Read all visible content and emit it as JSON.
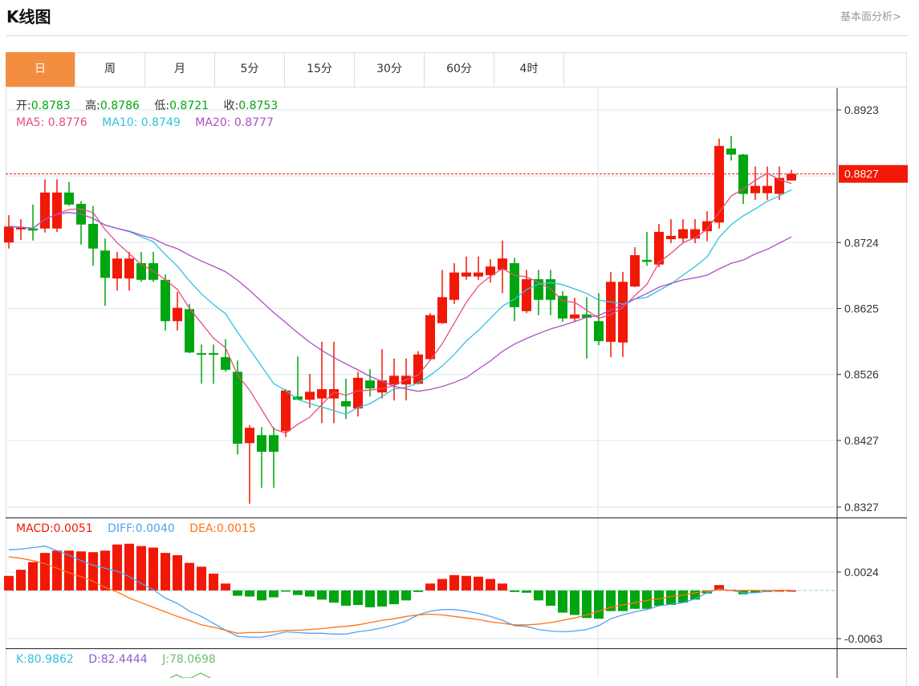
{
  "header": {
    "title": "K线图",
    "link": "基本面分析>"
  },
  "tabs": [
    {
      "label": "日",
      "active": true
    },
    {
      "label": "周"
    },
    {
      "label": "月"
    },
    {
      "label": "5分"
    },
    {
      "label": "15分"
    },
    {
      "label": "30分"
    },
    {
      "label": "60分"
    },
    {
      "label": "4时"
    }
  ],
  "ohlc_legend": {
    "open_label": "开:",
    "open": "0.8783",
    "high_label": "高:",
    "high": "0.8786",
    "low_label": "低:",
    "low": "0.8721",
    "close_label": "收:",
    "close": "0.8753"
  },
  "ma_legend": {
    "ma5": "MA5: 0.8776",
    "ma10": "MA10: 0.8749",
    "ma20": "MA20: 0.8777"
  },
  "macd_legend": {
    "macd": "MACD:0.0051",
    "diff": "DIFF:0.0040",
    "dea": "DEA:0.0015"
  },
  "kdj_legend": {
    "k": "K:80.9862",
    "d": "D:82.4444",
    "j": "J:78.0698"
  },
  "colors": {
    "up": "#f21806",
    "down": "#00a60f",
    "ma5": "#ea4c7f",
    "ma10": "#2ec4dc",
    "ma20": "#ab4fc4",
    "diff": "#4da3f5",
    "dea": "#ff7214",
    "accent": "#f38d3f"
  },
  "chart_data": [
    {
      "type": "candlestick",
      "title": "K线图",
      "ylim": [
        0.8327,
        0.8923
      ],
      "yticks": [
        "0.8923",
        "0.8724",
        "0.8625",
        "0.8526",
        "0.8427",
        "0.8327"
      ],
      "current_price": "0.8827",
      "ohlc": [
        [
          0.8724,
          0.8765,
          0.8715,
          0.8748
        ],
        [
          0.8744,
          0.8759,
          0.8728,
          0.8746
        ],
        [
          0.8745,
          0.8781,
          0.8727,
          0.8742
        ],
        [
          0.8745,
          0.8819,
          0.8739,
          0.8799
        ],
        [
          0.8745,
          0.8819,
          0.874,
          0.8799
        ],
        [
          0.8799,
          0.8815,
          0.8779,
          0.8781
        ],
        [
          0.8782,
          0.8786,
          0.8721,
          0.8751
        ],
        [
          0.8752,
          0.8779,
          0.8689,
          0.8715
        ],
        [
          0.8712,
          0.873,
          0.8629,
          0.8671
        ],
        [
          0.867,
          0.871,
          0.8652,
          0.87
        ],
        [
          0.867,
          0.871,
          0.8652,
          0.87
        ],
        [
          0.8693,
          0.871,
          0.8665,
          0.8668
        ],
        [
          0.8693,
          0.871,
          0.8665,
          0.8668
        ],
        [
          0.8668,
          0.8676,
          0.8592,
          0.8606
        ],
        [
          0.8606,
          0.865,
          0.8592,
          0.8626
        ],
        [
          0.8624,
          0.8632,
          0.8558,
          0.8559
        ],
        [
          0.8558,
          0.8571,
          0.8512,
          0.8556
        ],
        [
          0.8558,
          0.8571,
          0.8512,
          0.8556
        ],
        [
          0.8552,
          0.8579,
          0.853,
          0.8533
        ],
        [
          0.853,
          0.8547,
          0.8406,
          0.8422
        ],
        [
          0.8423,
          0.845,
          0.8332,
          0.8446
        ],
        [
          0.8435,
          0.8447,
          0.8356,
          0.841
        ],
        [
          0.8435,
          0.8447,
          0.8356,
          0.841
        ],
        [
          0.8441,
          0.8504,
          0.8432,
          0.8502
        ],
        [
          0.8493,
          0.8553,
          0.8488,
          0.8488
        ],
        [
          0.8488,
          0.8527,
          0.8476,
          0.85
        ],
        [
          0.849,
          0.8575,
          0.8453,
          0.8504
        ],
        [
          0.849,
          0.8575,
          0.8453,
          0.8504
        ],
        [
          0.8486,
          0.852,
          0.8459,
          0.8478
        ],
        [
          0.8475,
          0.853,
          0.8463,
          0.8521
        ],
        [
          0.8517,
          0.8534,
          0.8493,
          0.8505
        ],
        [
          0.8499,
          0.8564,
          0.849,
          0.8517
        ],
        [
          0.8511,
          0.855,
          0.8487,
          0.8524
        ],
        [
          0.8511,
          0.855,
          0.8487,
          0.8524
        ],
        [
          0.8512,
          0.8561,
          0.8511,
          0.8556
        ],
        [
          0.8549,
          0.8618,
          0.8547,
          0.8615
        ],
        [
          0.8603,
          0.8683,
          0.8602,
          0.8642
        ],
        [
          0.8638,
          0.8693,
          0.8632,
          0.8679
        ],
        [
          0.8673,
          0.8703,
          0.8668,
          0.8679
        ],
        [
          0.8673,
          0.8703,
          0.8668,
          0.8679
        ],
        [
          0.8675,
          0.8699,
          0.8664,
          0.8688
        ],
        [
          0.8683,
          0.8727,
          0.8648,
          0.87
        ],
        [
          0.8693,
          0.8701,
          0.8606,
          0.8627
        ],
        [
          0.8621,
          0.8683,
          0.8618,
          0.8669
        ],
        [
          0.8669,
          0.8683,
          0.8615,
          0.8638
        ],
        [
          0.8669,
          0.8683,
          0.8615,
          0.8638
        ],
        [
          0.8644,
          0.8651,
          0.8605,
          0.861
        ],
        [
          0.861,
          0.8641,
          0.8606,
          0.8616
        ],
        [
          0.8616,
          0.8642,
          0.855,
          0.8611
        ],
        [
          0.8606,
          0.8648,
          0.857,
          0.8576
        ],
        [
          0.8575,
          0.868,
          0.8552,
          0.8665
        ],
        [
          0.8574,
          0.868,
          0.8552,
          0.8665
        ],
        [
          0.8658,
          0.8717,
          0.8657,
          0.8705
        ],
        [
          0.8698,
          0.874,
          0.8689,
          0.8695
        ],
        [
          0.8691,
          0.8752,
          0.8687,
          0.874
        ],
        [
          0.8729,
          0.8759,
          0.8723,
          0.8734
        ],
        [
          0.873,
          0.8759,
          0.8723,
          0.8744
        ],
        [
          0.873,
          0.8759,
          0.8723,
          0.8744
        ],
        [
          0.8741,
          0.8771,
          0.8726,
          0.8756
        ],
        [
          0.8754,
          0.888,
          0.8745,
          0.8869
        ],
        [
          0.8865,
          0.8884,
          0.8847,
          0.8856
        ],
        [
          0.8856,
          0.8857,
          0.8782,
          0.8797
        ],
        [
          0.8798,
          0.8838,
          0.8788,
          0.8809
        ],
        [
          0.8798,
          0.8838,
          0.8788,
          0.8809
        ],
        [
          0.8797,
          0.8838,
          0.8788,
          0.8821
        ],
        [
          0.8817,
          0.8833,
          0.8817,
          0.8827
        ]
      ],
      "ma_periods": [
        5,
        10,
        20
      ]
    },
    {
      "type": "macd",
      "ylim": [
        -0.0063,
        0.0024
      ],
      "yticks": [
        "0.0024",
        "-0.0063"
      ],
      "macd": [
        0.0019,
        0.0027,
        0.0037,
        0.0049,
        0.0052,
        0.0052,
        0.0051,
        0.005,
        0.0052,
        0.006,
        0.0061,
        0.0058,
        0.0056,
        0.0049,
        0.0046,
        0.0036,
        0.0031,
        0.0022,
        0.0009,
        -0.0007,
        -0.0008,
        -0.0013,
        -0.0009,
        -0.0001,
        -0.0006,
        -0.0008,
        -0.0012,
        -0.0016,
        -0.002,
        -0.0019,
        -0.0022,
        -0.0021,
        -0.0018,
        -0.0013,
        -0.0002,
        0.0009,
        0.0015,
        0.002,
        0.0019,
        0.0018,
        0.0015,
        0.0009,
        -0.0002,
        -0.0003,
        -0.0013,
        -0.002,
        -0.0029,
        -0.0032,
        -0.0036,
        -0.0037,
        -0.0027,
        -0.0027,
        -0.0024,
        -0.0024,
        -0.002,
        -0.0019,
        -0.0016,
        -0.0012,
        -0.0004,
        0.0007,
        0.0001,
        -0.0005,
        -0.0003,
        -0.0002,
        0.0,
        0.0
      ],
      "diff": [
        0.0053,
        0.0054,
        0.0056,
        0.0058,
        0.0052,
        0.0046,
        0.0039,
        0.0033,
        0.0029,
        0.0025,
        0.0018,
        0.0009,
        0.0001,
        -0.001,
        -0.0017,
        -0.0027,
        -0.0034,
        -0.0043,
        -0.0052,
        -0.006,
        -0.0061,
        -0.0061,
        -0.0058,
        -0.0054,
        -0.0055,
        -0.0056,
        -0.0056,
        -0.0057,
        -0.0057,
        -0.0054,
        -0.0052,
        -0.0049,
        -0.0045,
        -0.004,
        -0.0032,
        -0.0027,
        -0.0025,
        -0.0025,
        -0.0027,
        -0.003,
        -0.0034,
        -0.0039,
        -0.0046,
        -0.0047,
        -0.0051,
        -0.0053,
        -0.0054,
        -0.0053,
        -0.0051,
        -0.0046,
        -0.0037,
        -0.0032,
        -0.0028,
        -0.0025,
        -0.002,
        -0.0018,
        -0.0016,
        -0.0011,
        -0.0003,
        0.0002,
        0.0,
        -0.0003,
        -0.0003,
        -0.0001,
        0.0,
        0.0
      ],
      "dea": [
        0.0044,
        0.0042,
        0.0039,
        0.0035,
        0.0029,
        0.0023,
        0.0018,
        0.0012,
        0.0004,
        -0.0002,
        -0.001,
        -0.0016,
        -0.0022,
        -0.0028,
        -0.0034,
        -0.0039,
        -0.0045,
        -0.0048,
        -0.0052,
        -0.0056,
        -0.0055,
        -0.0055,
        -0.0054,
        -0.0052,
        -0.0052,
        -0.0051,
        -0.005,
        -0.0048,
        -0.0047,
        -0.0045,
        -0.0042,
        -0.0039,
        -0.0037,
        -0.0034,
        -0.0032,
        -0.0031,
        -0.0032,
        -0.0034,
        -0.0036,
        -0.0038,
        -0.0041,
        -0.0043,
        -0.0045,
        -0.0045,
        -0.0044,
        -0.0042,
        -0.0039,
        -0.0036,
        -0.0032,
        -0.0027,
        -0.0022,
        -0.0019,
        -0.0016,
        -0.0013,
        -0.0011,
        -0.0008,
        -0.0006,
        -0.0003,
        -0.0001,
        0.0001,
        0.0,
        0.0,
        0.0,
        0.0,
        0.0,
        0.0
      ]
    }
  ]
}
